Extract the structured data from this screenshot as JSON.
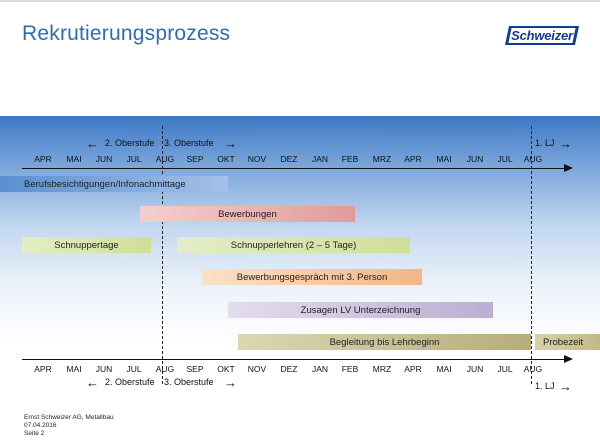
{
  "slide": {
    "title": "Rekrutierungsprozess",
    "logo_text": "Schweizer",
    "accent_color": "#2e6db3",
    "logo_color": "#123f8c"
  },
  "timeline": {
    "months": [
      "APR",
      "MAI",
      "JUN",
      "JUL",
      "AUG",
      "SEP",
      "OKT",
      "NOV",
      "DEZ",
      "JAN",
      "FEB",
      "MRZ",
      "APR",
      "MAI",
      "JUN",
      "JUL",
      "AUG"
    ],
    "stage_left": "2. Oberstufe",
    "stage_right": "3. Oberstufe",
    "lehrjahr": "1. LJ",
    "arrow_left": "←",
    "arrow_right": "→"
  },
  "phases": {
    "berufsbesichtigungen": {
      "label": "Berufsbesichtigungen/Infonachmittage",
      "color": "#7aa6d8"
    },
    "bewerbungen": {
      "label": "Bewerbungen",
      "color": "#e9a6a5"
    },
    "schnuppertage": {
      "label": "Schnuppertage",
      "color": "#d6e4a6"
    },
    "schnupperlehren": {
      "label": "Schnupperlehren (2 – 5 Tage)",
      "color": "#d6e4a6"
    },
    "bewerbungsgespraech": {
      "label": "Bewerbungsgespräch mit 3. Person",
      "color": "#f6c196"
    },
    "zusagen": {
      "label": "Zusagen LV Unterzeichnung",
      "color": "#c5b8d8"
    },
    "begleitung": {
      "label": "Begleitung bis Lehrbeginn",
      "color": "#c7bf94"
    },
    "probezeit": {
      "label": "Probezeit",
      "color": "#c7bf94"
    }
  },
  "footer": {
    "company": "Ernst Schweizer AG, Metallbau",
    "date": "07.04.2016",
    "page": "Seite 2"
  }
}
